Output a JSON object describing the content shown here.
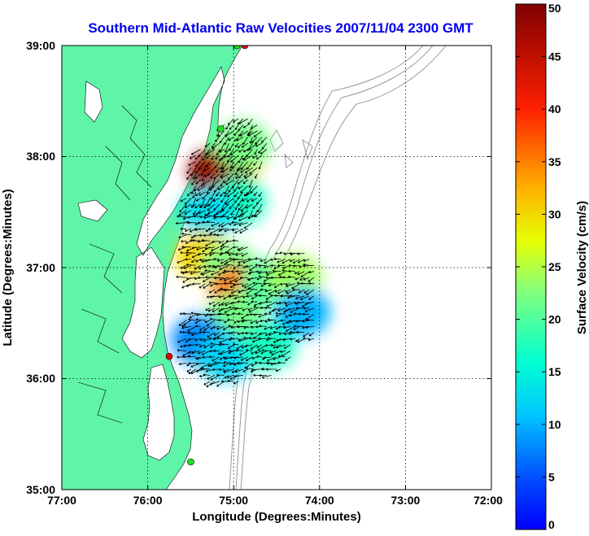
{
  "chart_data": {
    "type": "heatmap",
    "title": "Southern Mid-Atlantic Raw Velocities 2007/11/04 2300 GMT",
    "xlabel": "Longitude (Degrees:Minutes)",
    "ylabel": "Latitude (Degrees:Minutes)",
    "x_ticks": [
      "77:00",
      "76:00",
      "75:00",
      "74:00",
      "73:00",
      "72:00"
    ],
    "y_ticks": [
      "35:00",
      "36:00",
      "37:00",
      "38:00",
      "39:00"
    ],
    "xlim": [
      -77,
      -72
    ],
    "ylim": [
      35,
      39
    ],
    "grid": true,
    "colorbar": {
      "label": "Surface Velocity (cm/s)",
      "ticks": [
        "0",
        "5",
        "10",
        "15",
        "20",
        "25",
        "30",
        "35",
        "40",
        "45",
        "50"
      ],
      "range": [
        0,
        50
      ],
      "colormap": "jet"
    },
    "colors": {
      "land": "#5ef5a8",
      "water": "#ffffff",
      "bathymetry": "#9a9a9a",
      "vectors": "#000000",
      "title": "#0000ee",
      "station_red": "#e00000",
      "station_green": "#22dd22"
    },
    "velocity_regions": [
      {
        "lon": -75.0,
        "lat": 37.95,
        "speed": 30
      },
      {
        "lon": -75.2,
        "lat": 37.85,
        "speed": 48
      },
      {
        "lon": -75.15,
        "lat": 37.85,
        "speed": 47
      },
      {
        "lon": -74.9,
        "lat": 38.1,
        "speed": 22
      },
      {
        "lon": -74.95,
        "lat": 37.6,
        "speed": 17
      },
      {
        "lon": -75.3,
        "lat": 37.5,
        "speed": 13
      },
      {
        "lon": -75.35,
        "lat": 37.1,
        "speed": 30
      },
      {
        "lon": -75.05,
        "lat": 37.0,
        "speed": 22
      },
      {
        "lon": -74.95,
        "lat": 36.8,
        "speed": 36
      },
      {
        "lon": -75.0,
        "lat": 36.55,
        "speed": 22
      },
      {
        "lon": -74.6,
        "lat": 36.85,
        "speed": 20
      },
      {
        "lon": -74.3,
        "lat": 36.9,
        "speed": 24
      },
      {
        "lon": -75.4,
        "lat": 36.35,
        "speed": 8
      },
      {
        "lon": -75.1,
        "lat": 36.2,
        "speed": 12
      },
      {
        "lon": -74.6,
        "lat": 36.3,
        "speed": 17
      },
      {
        "lon": -74.2,
        "lat": 36.6,
        "speed": 10
      }
    ],
    "stations": [
      {
        "lon": -74.87,
        "lat": 39.0,
        "color": "red"
      },
      {
        "lon": -74.96,
        "lat": 39.0,
        "color": "green"
      },
      {
        "lon": -75.15,
        "lat": 38.25,
        "color": "green"
      },
      {
        "lon": -75.75,
        "lat": 36.2,
        "color": "red"
      },
      {
        "lon": -75.5,
        "lat": 35.25,
        "color": "green"
      }
    ]
  }
}
